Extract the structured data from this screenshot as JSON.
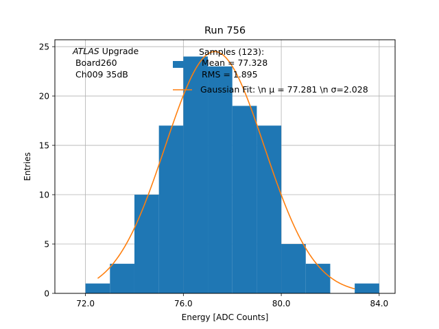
{
  "chart_data": {
    "type": "bar",
    "title": "Run 756",
    "xlabel": "Energy [ADC Counts]",
    "ylabel": "Entries",
    "xlim": [
      70.75,
      84.65
    ],
    "ylim": [
      0,
      25.7
    ],
    "xticks": [
      72.0,
      76.0,
      80.0,
      84.0
    ],
    "xtick_labels": [
      "72.0",
      "76.0",
      "80.0",
      "84.0"
    ],
    "yticks": [
      0,
      5,
      10,
      15,
      20,
      25
    ],
    "ytick_labels": [
      "0",
      "5",
      "10",
      "15",
      "20",
      "25"
    ],
    "grid": true,
    "bin_edges": [
      72,
      73,
      74,
      75,
      76,
      77,
      78,
      79,
      80,
      81,
      82,
      83,
      84
    ],
    "counts": [
      1,
      3,
      10,
      17,
      24,
      23,
      19,
      17,
      5,
      3,
      0,
      1
    ],
    "fit": {
      "type": "gaussian",
      "mu": 77.281,
      "sigma": 2.028,
      "amplitude": 24.5,
      "x_range": [
        72.5,
        83.0
      ]
    },
    "hist_color": "#1f77b4",
    "fit_color": "#ff7f0e",
    "annotation": {
      "prefix": "ATLAS",
      "suffix": " Upgrade",
      "lines": [
        " Board260",
        " Ch009 35dB"
      ]
    },
    "legend": {
      "placement": "top-right",
      "entries": [
        {
          "kind": "patch",
          "lines": [
            "Samples (123):",
            " Mean = 77.328",
            " RMS = 1.895"
          ]
        },
        {
          "kind": "line",
          "lines": [
            "Gaussian Fit: \\n μ = 77.281 \\n σ=2.028"
          ]
        }
      ]
    }
  }
}
